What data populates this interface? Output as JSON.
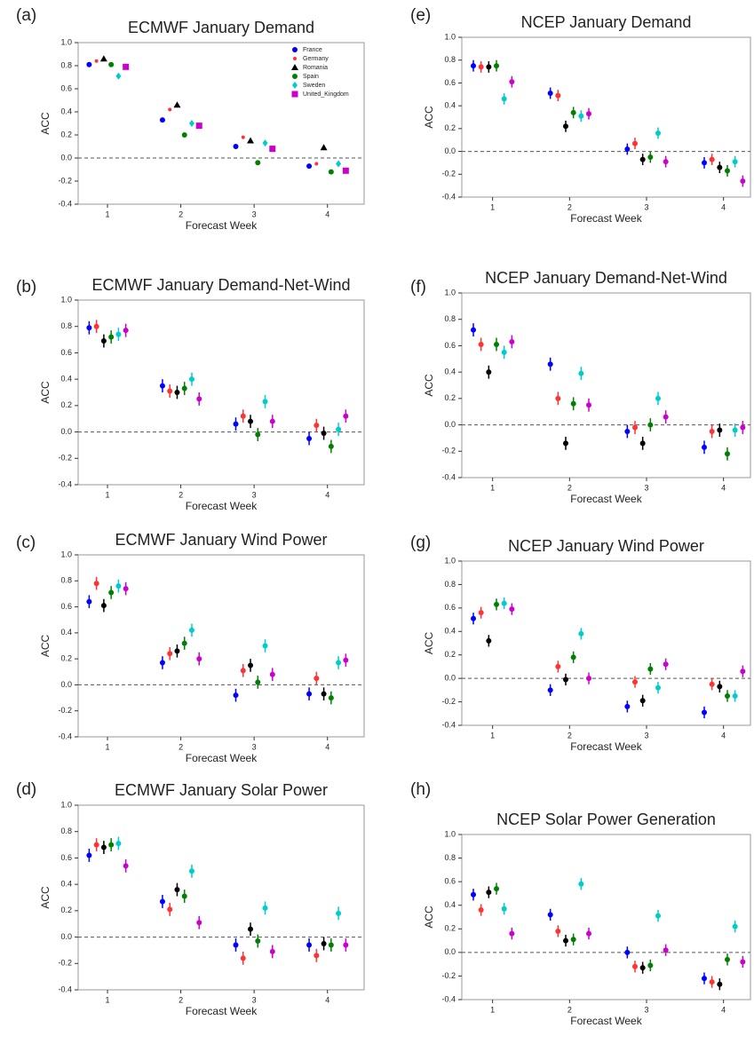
{
  "chart_data": [
    {
      "type": "scatter",
      "panel_label": "(a)",
      "title": "ECMWF January Demand",
      "x_label": "Forecast Week",
      "y_label": "ACC",
      "x": [
        1,
        2,
        3,
        4
      ],
      "xlim": [
        0.6,
        4.5
      ],
      "xticks": [
        1,
        2,
        3,
        4
      ],
      "ylim": [
        -0.4,
        1.0
      ],
      "yticks": [
        {
          "value": -0.4,
          "label": "-0.4"
        },
        {
          "value": -0.2,
          "label": "-0.2"
        },
        {
          "value": 0,
          "label": "0.0"
        },
        {
          "value": 0.2,
          "label": "0.2"
        },
        {
          "value": 0.4,
          "label": "0.4"
        },
        {
          "value": 0.6,
          "label": "0.6"
        },
        {
          "value": 0.8,
          "label": "0.8"
        },
        {
          "value": 1.0,
          "label": "1.0"
        }
      ],
      "hline": 0,
      "legend": "upper right",
      "series": [
        {
          "name": "France",
          "color": "#0000ff",
          "marker": "o",
          "values": [
            0.81,
            0.33,
            0.1,
            -0.07
          ]
        },
        {
          "name": "Germany",
          "color": "#ff3333",
          "marker": "*",
          "values": [
            0.84,
            0.42,
            0.18,
            -0.05
          ]
        },
        {
          "name": "Romania",
          "color": "#000000",
          "marker": "^",
          "values": [
            0.86,
            0.46,
            0.15,
            0.09
          ]
        },
        {
          "name": "Spain",
          "color": "#008000",
          "marker": "o",
          "values": [
            0.81,
            0.2,
            -0.04,
            -0.12
          ]
        },
        {
          "name": "Sweden",
          "color": "#00cccc",
          "marker": "D",
          "values": [
            0.71,
            0.3,
            0.13,
            -0.05
          ]
        },
        {
          "name": "United_Kingdom",
          "color": "#cc00cc",
          "marker": "s",
          "values": [
            0.79,
            0.28,
            0.08,
            -0.11
          ]
        }
      ]
    },
    {
      "type": "scatter",
      "panel_label": "(b)",
      "title": "ECMWF January Demand-Net-Wind",
      "x_label": "Forecast Week",
      "y_label": "ACC",
      "x": [
        1,
        2,
        3,
        4
      ],
      "xlim": [
        0.6,
        4.5
      ],
      "xticks": [
        1,
        2,
        3,
        4
      ],
      "ylim": [
        -0.4,
        1.0
      ],
      "yticks": [
        {
          "value": -0.4,
          "label": "-0.4"
        },
        {
          "value": -0.2,
          "label": "-0.2"
        },
        {
          "value": 0,
          "label": "0.0"
        },
        {
          "value": 0.2,
          "label": "0.2"
        },
        {
          "value": 0.4,
          "label": "0.4"
        },
        {
          "value": 0.6,
          "label": "0.6"
        },
        {
          "value": 0.8,
          "label": "0.8"
        },
        {
          "value": 1.0,
          "label": "1.0"
        }
      ],
      "hline": 0,
      "error": 0.05,
      "series": [
        {
          "color": "#0000ff",
          "values": [
            0.79,
            0.35,
            0.06,
            -0.05
          ]
        },
        {
          "color": "#ff3333",
          "values": [
            0.8,
            0.31,
            0.12,
            0.05
          ]
        },
        {
          "color": "#000000",
          "values": [
            0.69,
            0.3,
            0.08,
            -0.01
          ]
        },
        {
          "color": "#008000",
          "values": [
            0.72,
            0.33,
            -0.02,
            -0.11
          ]
        },
        {
          "color": "#00cccc",
          "values": [
            0.74,
            0.4,
            0.23,
            0.02
          ]
        },
        {
          "color": "#cc00cc",
          "values": [
            0.77,
            0.25,
            0.08,
            0.12
          ]
        }
      ]
    },
    {
      "type": "scatter",
      "panel_label": "(c)",
      "title": "ECMWF January Wind Power",
      "x_label": "Forecast Week",
      "y_label": "ACC",
      "x": [
        1,
        2,
        3,
        4
      ],
      "xlim": [
        0.6,
        4.5
      ],
      "xticks": [
        1,
        2,
        3,
        4
      ],
      "ylim": [
        -0.4,
        1.0
      ],
      "yticks": [
        {
          "value": -0.4,
          "label": "-0.4"
        },
        {
          "value": -0.2,
          "label": "-0.2"
        },
        {
          "value": 0,
          "label": "0.0"
        },
        {
          "value": 0.2,
          "label": "0.2"
        },
        {
          "value": 0.4,
          "label": "0.4"
        },
        {
          "value": 0.6,
          "label": "0.6"
        },
        {
          "value": 0.8,
          "label": "0.8"
        },
        {
          "value": 1.0,
          "label": "1.0"
        }
      ],
      "hline": 0,
      "error": 0.05,
      "series": [
        {
          "color": "#0000ff",
          "values": [
            0.64,
            0.17,
            -0.08,
            -0.07
          ]
        },
        {
          "color": "#ff3333",
          "values": [
            0.78,
            0.24,
            0.11,
            0.05
          ]
        },
        {
          "color": "#000000",
          "values": [
            0.61,
            0.26,
            0.15,
            -0.07
          ]
        },
        {
          "color": "#008000",
          "values": [
            0.71,
            0.32,
            0.02,
            -0.1
          ]
        },
        {
          "color": "#00cccc",
          "values": [
            0.76,
            0.42,
            0.3,
            0.17
          ]
        },
        {
          "color": "#cc00cc",
          "values": [
            0.74,
            0.2,
            0.08,
            0.19
          ]
        }
      ]
    },
    {
      "type": "scatter",
      "panel_label": "(d)",
      "title": "ECMWF January Solar Power",
      "x_label": "Forecast Week",
      "y_label": "ACC",
      "x": [
        1,
        2,
        3,
        4
      ],
      "xlim": [
        0.6,
        4.5
      ],
      "xticks": [
        1,
        2,
        3,
        4
      ],
      "ylim": [
        -0.4,
        1.0
      ],
      "yticks": [
        {
          "value": -0.4,
          "label": "-0.4"
        },
        {
          "value": -0.2,
          "label": "-0.2"
        },
        {
          "value": 0,
          "label": "0.0"
        },
        {
          "value": 0.2,
          "label": "0.2"
        },
        {
          "value": 0.4,
          "label": "0.4"
        },
        {
          "value": 0.6,
          "label": "0.6"
        },
        {
          "value": 0.8,
          "label": "0.8"
        },
        {
          "value": 1.0,
          "label": "1.0"
        }
      ],
      "hline": 0,
      "error": 0.05,
      "series": [
        {
          "color": "#0000ff",
          "values": [
            0.62,
            0.27,
            -0.06,
            -0.06
          ]
        },
        {
          "color": "#ff3333",
          "values": [
            0.7,
            0.21,
            -0.16,
            -0.14
          ]
        },
        {
          "color": "#000000",
          "values": [
            0.68,
            0.36,
            0.06,
            -0.05
          ]
        },
        {
          "color": "#008000",
          "values": [
            0.7,
            0.31,
            -0.03,
            -0.06
          ]
        },
        {
          "color": "#00cccc",
          "values": [
            0.71,
            0.5,
            0.22,
            0.18
          ]
        },
        {
          "color": "#cc00cc",
          "values": [
            0.54,
            0.11,
            -0.11,
            -0.06
          ]
        }
      ]
    },
    {
      "type": "scatter",
      "panel_label": "(e)",
      "title": "NCEP January Demand",
      "x_label": "Forecast Week",
      "y_label": "ACC",
      "x": [
        1,
        2,
        3,
        4
      ],
      "xlim": [
        0.6,
        4.35
      ],
      "xticks": [
        1,
        2,
        3,
        4
      ],
      "ylim": [
        -0.4,
        1.0
      ],
      "yticks": [
        {
          "value": -0.4,
          "label": "-0.4"
        },
        {
          "value": -0.2,
          "label": "-0.2"
        },
        {
          "value": 0,
          "label": "0.0"
        },
        {
          "value": 0.2,
          "label": "0.2"
        },
        {
          "value": 0.4,
          "label": "0.4"
        },
        {
          "value": 0.6,
          "label": "0.6"
        },
        {
          "value": 0.8,
          "label": "0.8"
        },
        {
          "value": 1.0,
          "label": "1.0"
        }
      ],
      "hline": 0,
      "error": 0.05,
      "series": [
        {
          "color": "#0000ff",
          "values": [
            0.75,
            0.51,
            0.02,
            -0.1
          ]
        },
        {
          "color": "#ff3333",
          "values": [
            0.74,
            0.49,
            0.07,
            -0.07
          ]
        },
        {
          "color": "#000000",
          "values": [
            0.74,
            0.22,
            -0.07,
            -0.14
          ]
        },
        {
          "color": "#008000",
          "values": [
            0.75,
            0.34,
            -0.05,
            -0.17
          ]
        },
        {
          "color": "#00cccc",
          "values": [
            0.46,
            0.31,
            0.16,
            -0.09
          ]
        },
        {
          "color": "#cc00cc",
          "values": [
            0.61,
            0.33,
            -0.09,
            -0.26
          ]
        }
      ]
    },
    {
      "type": "scatter",
      "panel_label": "(f)",
      "title": "NCEP January Demand-Net-Wind",
      "x_label": "Forecast Week",
      "y_label": "ACC",
      "x": [
        1,
        2,
        3,
        4
      ],
      "xlim": [
        0.6,
        4.35
      ],
      "xticks": [
        1,
        2,
        3,
        4
      ],
      "ylim": [
        -0.4,
        1.0
      ],
      "yticks": [
        {
          "value": -0.4,
          "label": "-0.4"
        },
        {
          "value": -0.2,
          "label": "-0.2"
        },
        {
          "value": 0,
          "label": "0.0"
        },
        {
          "value": 0.2,
          "label": "0.2"
        },
        {
          "value": 0.4,
          "label": "0.4"
        },
        {
          "value": 0.6,
          "label": "0.6"
        },
        {
          "value": 0.8,
          "label": "0.8"
        },
        {
          "value": 1.0,
          "label": "1.0"
        }
      ],
      "hline": 0,
      "error": 0.05,
      "series": [
        {
          "color": "#0000ff",
          "values": [
            0.72,
            0.46,
            -0.05,
            -0.17
          ]
        },
        {
          "color": "#ff3333",
          "values": [
            0.61,
            0.2,
            -0.02,
            -0.05
          ]
        },
        {
          "color": "#000000",
          "values": [
            0.4,
            -0.14,
            -0.14,
            -0.04
          ]
        },
        {
          "color": "#008000",
          "values": [
            0.61,
            0.16,
            0.0,
            -0.22
          ]
        },
        {
          "color": "#00cccc",
          "values": [
            0.55,
            0.39,
            0.2,
            -0.04
          ]
        },
        {
          "color": "#cc00cc",
          "values": [
            0.63,
            0.15,
            0.06,
            -0.02
          ]
        }
      ]
    },
    {
      "type": "scatter",
      "panel_label": "(g)",
      "title": "NCEP January Wind Power",
      "x_label": "Forecast Week",
      "y_label": "ACC",
      "x": [
        1,
        2,
        3,
        4
      ],
      "xlim": [
        0.6,
        4.35
      ],
      "xticks": [
        1,
        2,
        3,
        4
      ],
      "ylim": [
        -0.4,
        1.0
      ],
      "yticks": [
        {
          "value": -0.4,
          "label": "-0.4"
        },
        {
          "value": -0.2,
          "label": "-0.2"
        },
        {
          "value": 0,
          "label": "0.0"
        },
        {
          "value": 0.2,
          "label": "0.2"
        },
        {
          "value": 0.4,
          "label": "0.4"
        },
        {
          "value": 0.6,
          "label": "0.6"
        },
        {
          "value": 0.8,
          "label": "0.8"
        },
        {
          "value": 1.0,
          "label": "1.0"
        }
      ],
      "hline": 0,
      "error": 0.05,
      "series": [
        {
          "color": "#0000ff",
          "values": [
            0.51,
            -0.1,
            -0.24,
            -0.29
          ]
        },
        {
          "color": "#ff3333",
          "values": [
            0.56,
            0.1,
            -0.03,
            -0.05
          ]
        },
        {
          "color": "#000000",
          "values": [
            0.32,
            -0.01,
            -0.19,
            -0.07
          ]
        },
        {
          "color": "#008000",
          "values": [
            0.63,
            0.18,
            0.08,
            -0.15
          ]
        },
        {
          "color": "#00cccc",
          "values": [
            0.64,
            0.38,
            -0.08,
            -0.15
          ]
        },
        {
          "color": "#cc00cc",
          "values": [
            0.59,
            0.0,
            0.12,
            0.06
          ]
        }
      ]
    },
    {
      "type": "scatter",
      "panel_label": "(h)",
      "title": "NCEP Solar Power Generation",
      "x_label": "Forecast Week",
      "y_label": "ACC",
      "x": [
        1,
        2,
        3,
        4
      ],
      "xlim": [
        0.6,
        4.35
      ],
      "xticks": [
        1,
        2,
        3,
        4
      ],
      "ylim": [
        -0.4,
        1.0
      ],
      "yticks": [
        {
          "value": -0.4,
          "label": "-0.4"
        },
        {
          "value": -0.2,
          "label": "-0.2"
        },
        {
          "value": 0,
          "label": "0.0"
        },
        {
          "value": 0.2,
          "label": "0.2"
        },
        {
          "value": 0.4,
          "label": "0.4"
        },
        {
          "value": 0.6,
          "label": "0.6"
        },
        {
          "value": 0.8,
          "label": "0.8"
        },
        {
          "value": 1.0,
          "label": "1.0"
        }
      ],
      "hline": 0,
      "error": 0.05,
      "series": [
        {
          "color": "#0000ff",
          "values": [
            0.49,
            0.32,
            0.0,
            -0.22
          ]
        },
        {
          "color": "#ff3333",
          "values": [
            0.36,
            0.18,
            -0.12,
            -0.25
          ]
        },
        {
          "color": "#000000",
          "values": [
            0.51,
            0.1,
            -0.13,
            -0.27
          ]
        },
        {
          "color": "#008000",
          "values": [
            0.54,
            0.11,
            -0.11,
            -0.06
          ]
        },
        {
          "color": "#00cccc",
          "values": [
            0.37,
            0.58,
            0.31,
            0.22
          ]
        },
        {
          "color": "#cc00cc",
          "values": [
            0.16,
            0.16,
            0.02,
            -0.08
          ]
        }
      ]
    }
  ]
}
